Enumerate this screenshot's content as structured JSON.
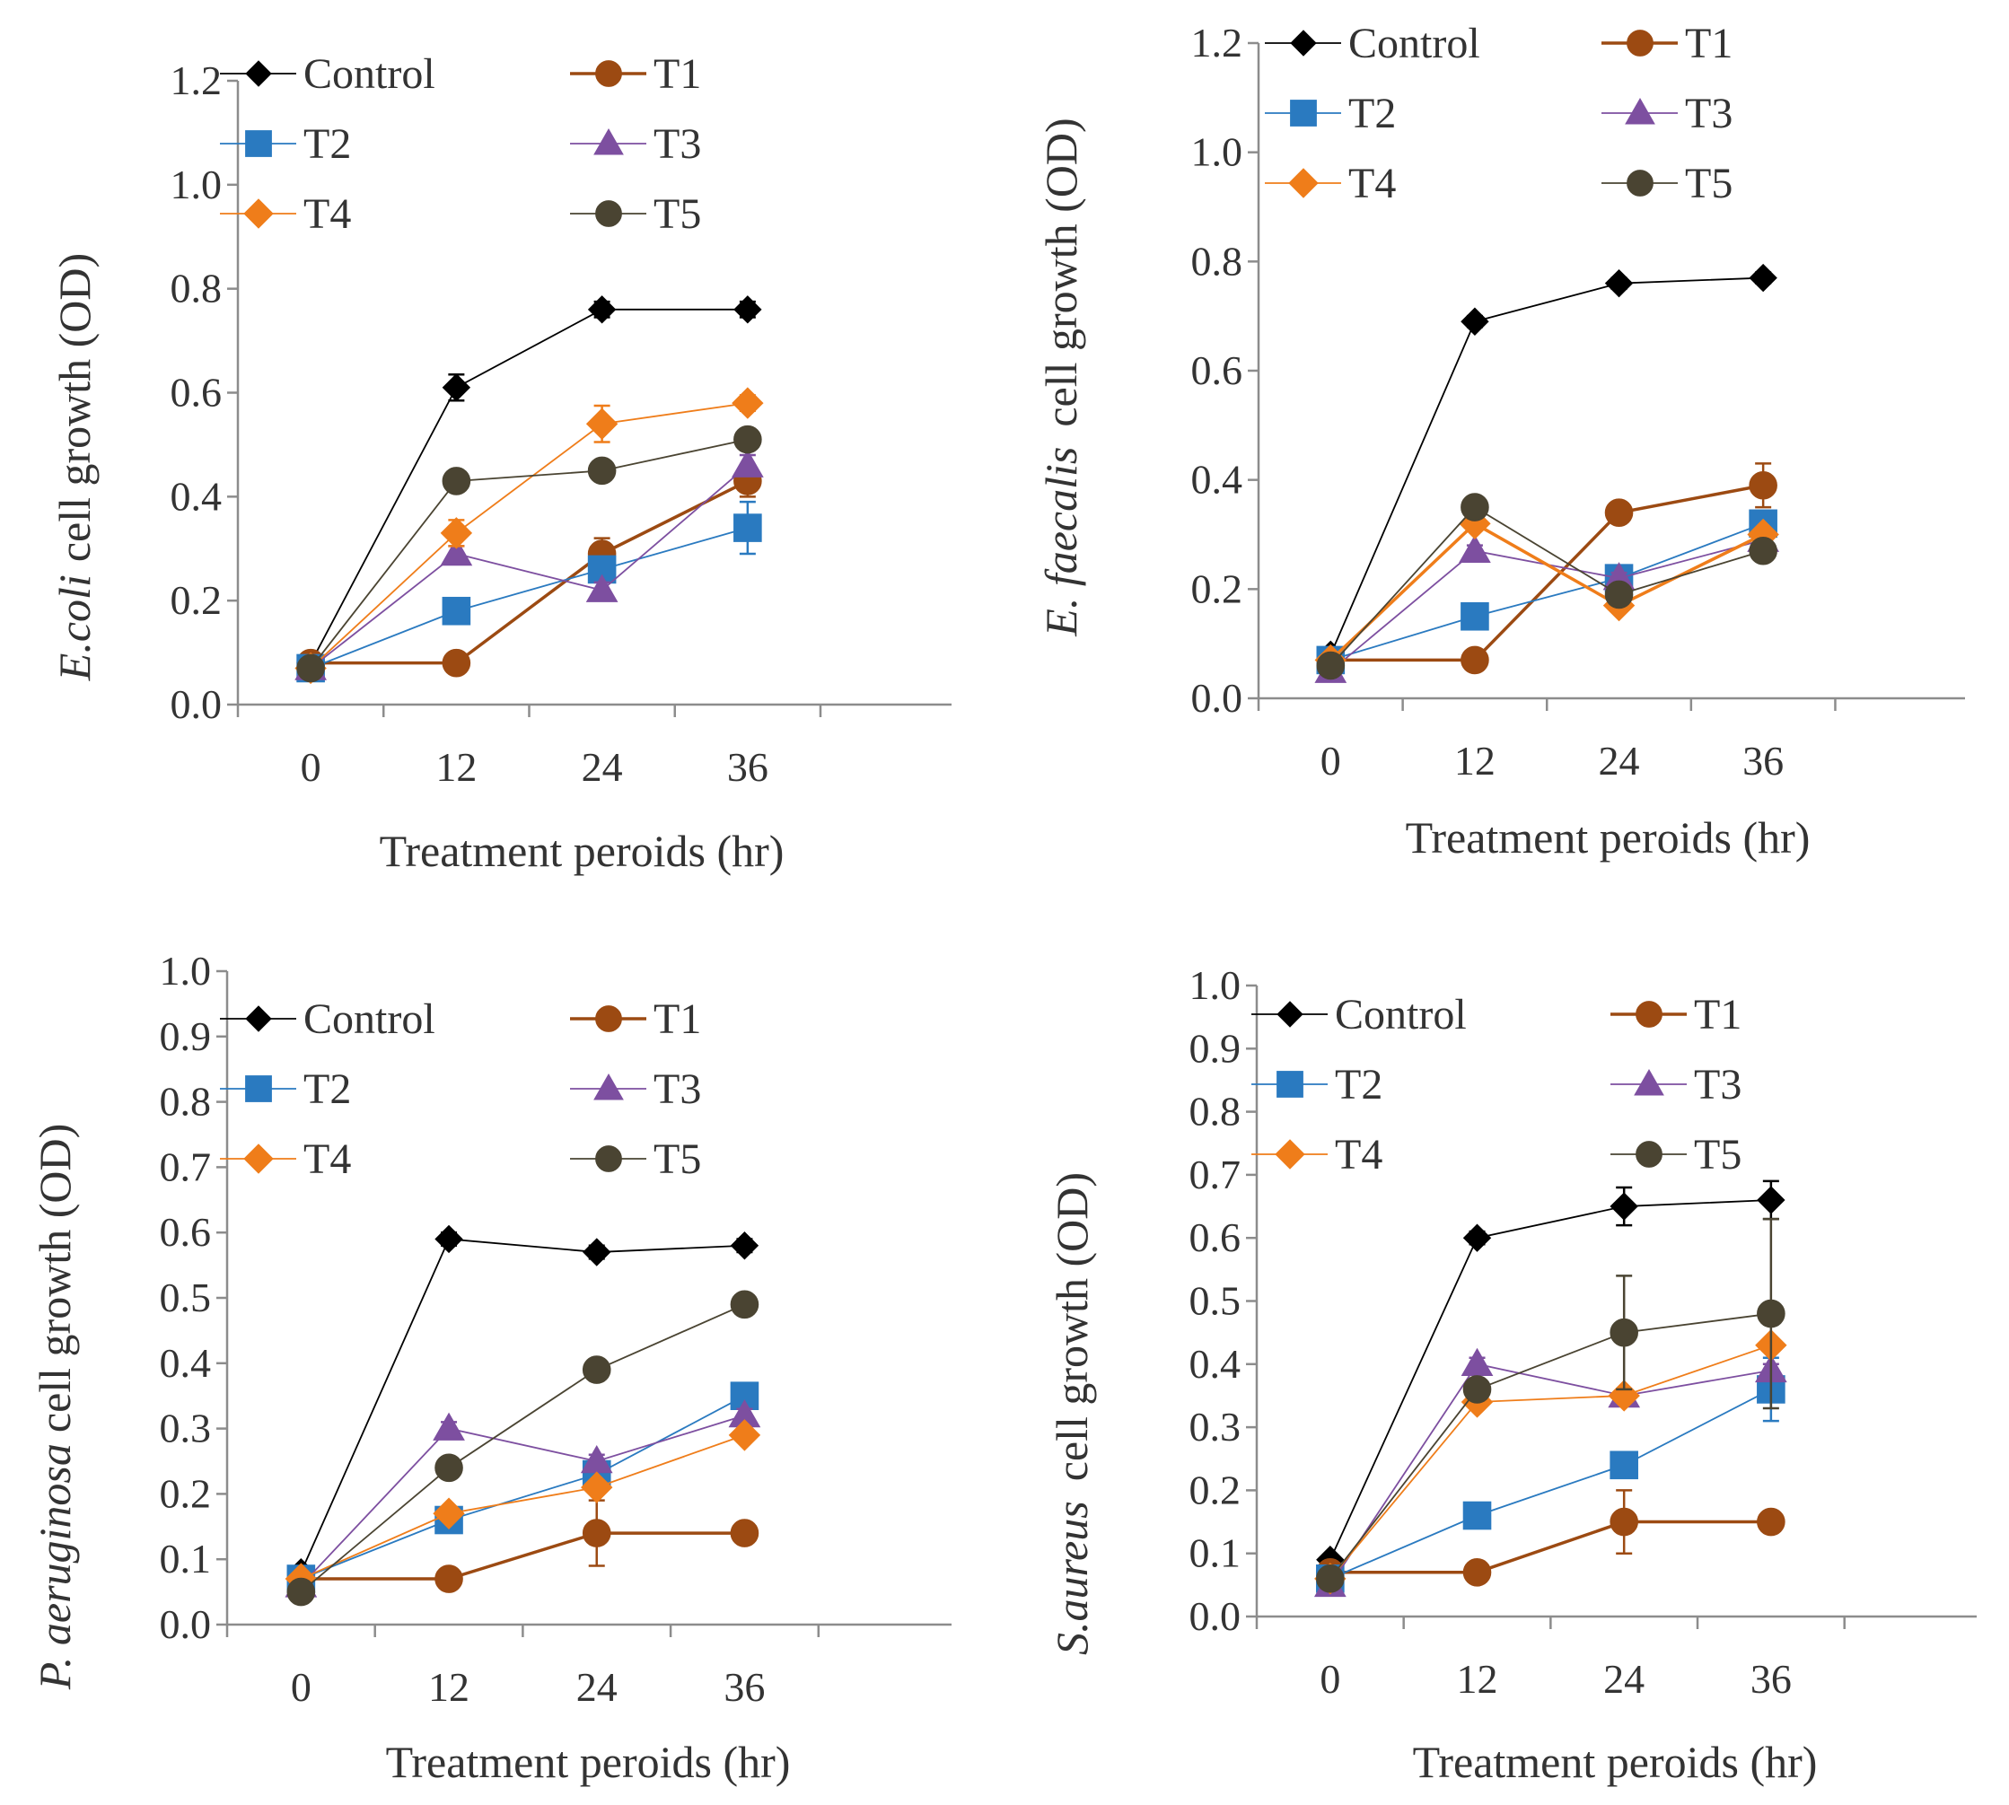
{
  "series_styles": {
    "Control": {
      "color": "#000000",
      "marker": "diamond"
    },
    "T1": {
      "color": "#9c4a12",
      "marker": "circle"
    },
    "T2": {
      "color": "#2a7ac0",
      "marker": "square"
    },
    "T3": {
      "color": "#7d4fa0",
      "marker": "triangle"
    },
    "T4": {
      "color": "#ef7d1a",
      "marker": "diamond"
    },
    "T5": {
      "color": "#4a4432",
      "marker": "circle"
    }
  },
  "chart_data": [
    {
      "type": "line",
      "organism": "E.coli",
      "ylabel_suffix": "cell growth (OD)",
      "xlabel": "Treatment peroids (hr)",
      "categories": [
        "0",
        "12",
        "24",
        "36"
      ],
      "ylim": [
        0,
        1.2
      ],
      "yticks": [
        "0.0",
        "0.2",
        "0.4",
        "0.6",
        "0.8",
        "1.0",
        "1.2"
      ],
      "series": [
        {
          "name": "Control",
          "values": [
            0.08,
            0.61,
            0.76,
            0.76
          ],
          "errors": [
            0.01,
            0.025,
            0.015,
            0.015
          ]
        },
        {
          "name": "T1",
          "values": [
            0.08,
            0.08,
            0.29,
            0.43
          ],
          "errors": [
            0.005,
            0.005,
            0.03,
            0.03
          ]
        },
        {
          "name": "T2",
          "values": [
            0.07,
            0.18,
            0.26,
            0.34
          ],
          "errors": [
            0.005,
            0.015,
            0.02,
            0.05
          ]
        },
        {
          "name": "T3",
          "values": [
            0.07,
            0.29,
            0.22,
            0.46
          ],
          "errors": [
            0.005,
            0.015,
            0.015,
            0.02
          ]
        },
        {
          "name": "T4",
          "values": [
            0.07,
            0.33,
            0.54,
            0.58
          ],
          "errors": [
            0.005,
            0.025,
            0.035,
            0.015
          ]
        },
        {
          "name": "T5",
          "values": [
            0.07,
            0.43,
            0.45,
            0.51
          ],
          "errors": [
            0.005,
            0.01,
            0.01,
            0.015
          ]
        }
      ]
    },
    {
      "type": "line",
      "organism": "E. faecalis",
      "ylabel_suffix": "cell growth (OD)",
      "xlabel": "Treatment peroids (hr)",
      "categories": [
        "0",
        "12",
        "24",
        "36"
      ],
      "ylim": [
        0,
        1.2
      ],
      "yticks": [
        "0.0",
        "0.2",
        "0.4",
        "0.6",
        "0.8",
        "1.0",
        "1.2"
      ],
      "series": [
        {
          "name": "Control",
          "values": [
            0.08,
            0.69,
            0.76,
            0.77
          ],
          "errors": [
            0.005,
            0.01,
            0.01,
            0.01
          ]
        },
        {
          "name": "T1",
          "values": [
            0.07,
            0.07,
            0.34,
            0.39
          ],
          "errors": [
            0.005,
            0.005,
            0.01,
            0.04
          ]
        },
        {
          "name": "T2",
          "values": [
            0.07,
            0.15,
            0.22,
            0.32
          ],
          "errors": [
            0.005,
            0.01,
            0.01,
            0.02
          ]
        },
        {
          "name": "T3",
          "values": [
            0.05,
            0.27,
            0.22,
            0.29
          ],
          "errors": [
            0.005,
            0.01,
            0.01,
            0.01
          ]
        },
        {
          "name": "T4",
          "values": [
            0.07,
            0.32,
            0.17,
            0.3
          ],
          "errors": [
            0.005,
            0.01,
            0.01,
            0.01
          ]
        },
        {
          "name": "T5",
          "values": [
            0.06,
            0.35,
            0.19,
            0.27
          ],
          "errors": [
            0.005,
            0.01,
            0.01,
            0.01
          ]
        }
      ]
    },
    {
      "type": "line",
      "organism": "P. aeruginosa",
      "ylabel_suffix": "cell growth (OD)",
      "xlabel": "Treatment peroids (hr)",
      "categories": [
        "0",
        "12",
        "24",
        "36"
      ],
      "ylim": [
        0,
        1.0
      ],
      "yticks": [
        "0.0",
        "0.1",
        "0.2",
        "0.3",
        "0.4",
        "0.5",
        "0.6",
        "0.7",
        "0.8",
        "0.9",
        "1.0"
      ],
      "series": [
        {
          "name": "Control",
          "values": [
            0.08,
            0.59,
            0.57,
            0.58
          ],
          "errors": [
            0.005,
            0.01,
            0.01,
            0.01
          ]
        },
        {
          "name": "T1",
          "values": [
            0.07,
            0.07,
            0.14,
            0.14
          ],
          "errors": [
            0.005,
            0.005,
            0.05,
            0.005
          ]
        },
        {
          "name": "T2",
          "values": [
            0.07,
            0.16,
            0.23,
            0.35
          ],
          "errors": [
            0.005,
            0.01,
            0.01,
            0.01
          ]
        },
        {
          "name": "T3",
          "values": [
            0.06,
            0.3,
            0.25,
            0.32
          ],
          "errors": [
            0.005,
            0.01,
            0.01,
            0.01
          ]
        },
        {
          "name": "T4",
          "values": [
            0.07,
            0.17,
            0.21,
            0.29
          ],
          "errors": [
            0.005,
            0.01,
            0.01,
            0.01
          ]
        },
        {
          "name": "T5",
          "values": [
            0.05,
            0.24,
            0.39,
            0.49
          ],
          "errors": [
            0.005,
            0.01,
            0.01,
            0.01
          ]
        }
      ]
    },
    {
      "type": "line",
      "organism": "S.aureus",
      "ylabel_suffix": "cell growth (OD)",
      "xlabel": "Treatment peroids (hr)",
      "categories": [
        "0",
        "12",
        "24",
        "36"
      ],
      "ylim": [
        0,
        1.0
      ],
      "yticks": [
        "0.0",
        "0.1",
        "0.2",
        "0.3",
        "0.4",
        "0.5",
        "0.6",
        "0.7",
        "0.8",
        "0.9",
        "1.0"
      ],
      "series": [
        {
          "name": "Control",
          "values": [
            0.09,
            0.6,
            0.65,
            0.66
          ],
          "errors": [
            0.005,
            0.01,
            0.03,
            0.03
          ]
        },
        {
          "name": "T1",
          "values": [
            0.07,
            0.07,
            0.15,
            0.15
          ],
          "errors": [
            0.005,
            0.005,
            0.05,
            0.005
          ]
        },
        {
          "name": "T2",
          "values": [
            0.06,
            0.16,
            0.24,
            0.36
          ],
          "errors": [
            0.005,
            0.01,
            0.01,
            0.05
          ]
        },
        {
          "name": "T3",
          "values": [
            0.05,
            0.4,
            0.35,
            0.39
          ],
          "errors": [
            0.005,
            0.01,
            0.01,
            0.01
          ]
        },
        {
          "name": "T4",
          "values": [
            0.06,
            0.34,
            0.35,
            0.43
          ],
          "errors": [
            0.005,
            0.01,
            0.01,
            0.01
          ]
        },
        {
          "name": "T5",
          "values": [
            0.06,
            0.36,
            0.45,
            0.48
          ],
          "errors": [
            0.005,
            0.01,
            0.09,
            0.15
          ]
        }
      ]
    }
  ]
}
